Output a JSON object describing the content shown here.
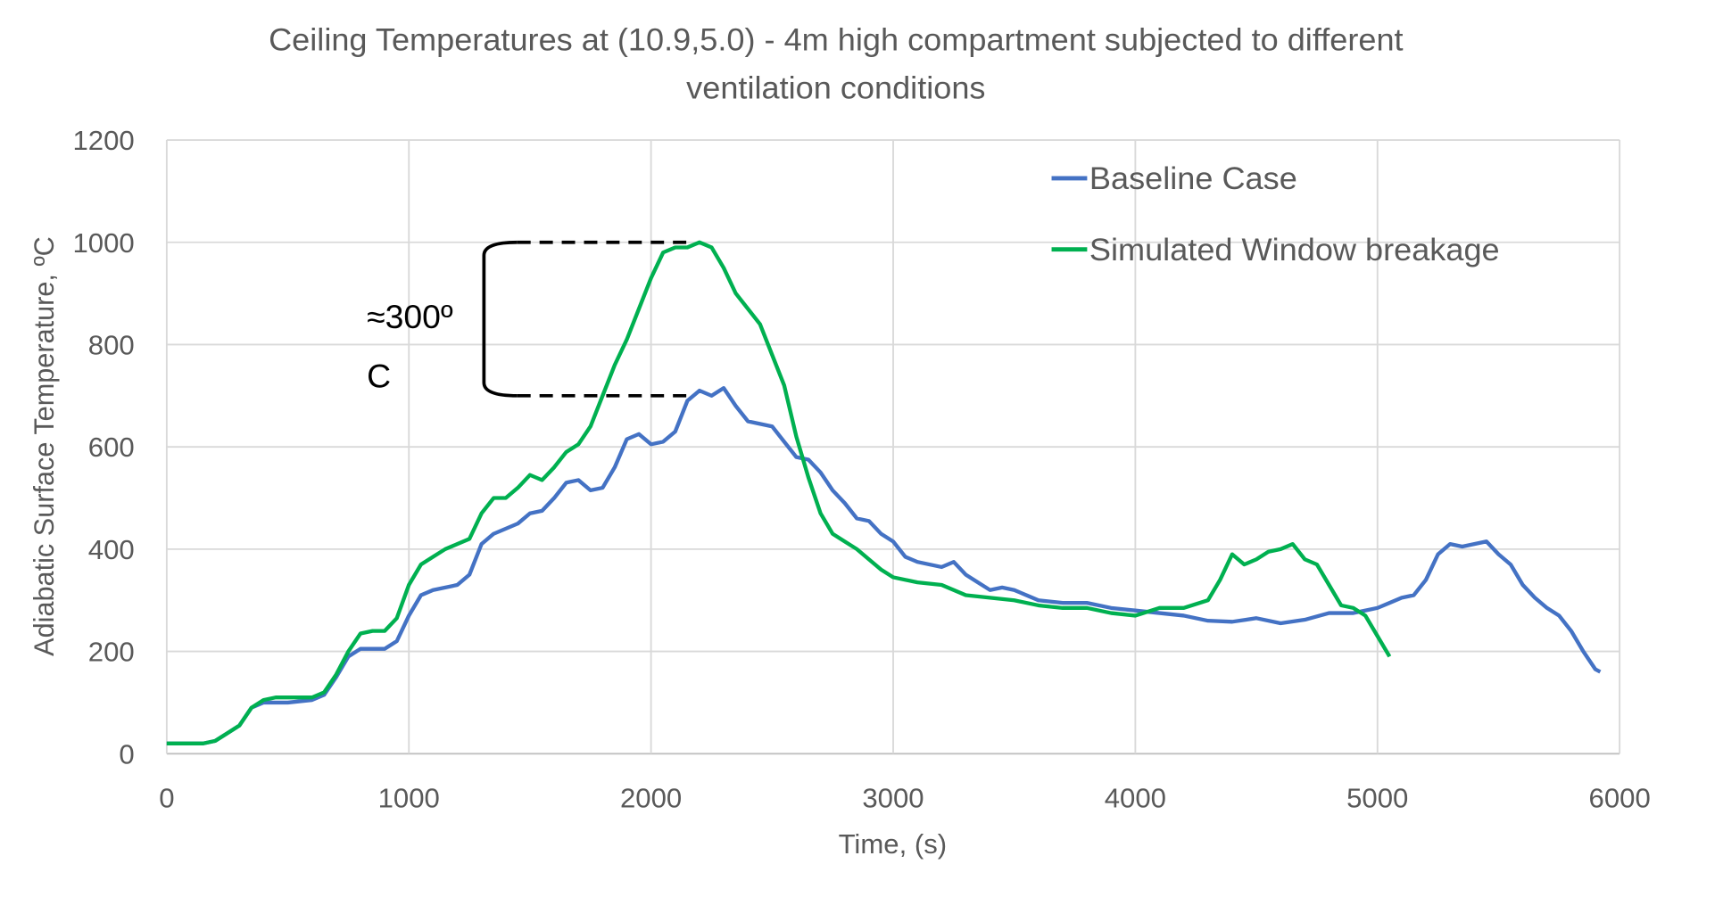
{
  "chart_data": {
    "type": "line",
    "title_line1": "Ceiling Temperatures at (10.9,5.0) - 4m high compartment subjected to different",
    "title_line2": "ventilation conditions",
    "xlabel": "Time, (s)",
    "ylabel": "Adiabatic Surface Temperature, ºC",
    "xlim": [
      0,
      6000
    ],
    "ylim": [
      0,
      1200
    ],
    "xticks": [
      0,
      1000,
      2000,
      3000,
      4000,
      5000,
      6000
    ],
    "yticks": [
      0,
      200,
      400,
      600,
      800,
      1000,
      1200
    ],
    "grid": true,
    "legend_position": "top-right",
    "series": [
      {
        "name": "Baseline Case",
        "color": "#4472c4",
        "points": [
          [
            0,
            20
          ],
          [
            150,
            20
          ],
          [
            200,
            25
          ],
          [
            300,
            55
          ],
          [
            350,
            90
          ],
          [
            400,
            100
          ],
          [
            500,
            100
          ],
          [
            600,
            105
          ],
          [
            650,
            115
          ],
          [
            700,
            150
          ],
          [
            750,
            190
          ],
          [
            800,
            205
          ],
          [
            900,
            205
          ],
          [
            950,
            220
          ],
          [
            1000,
            270
          ],
          [
            1050,
            310
          ],
          [
            1100,
            320
          ],
          [
            1200,
            330
          ],
          [
            1250,
            350
          ],
          [
            1300,
            410
          ],
          [
            1350,
            430
          ],
          [
            1400,
            440
          ],
          [
            1450,
            450
          ],
          [
            1500,
            470
          ],
          [
            1550,
            475
          ],
          [
            1600,
            500
          ],
          [
            1650,
            530
          ],
          [
            1700,
            535
          ],
          [
            1750,
            515
          ],
          [
            1800,
            520
          ],
          [
            1850,
            560
          ],
          [
            1900,
            615
          ],
          [
            1950,
            625
          ],
          [
            2000,
            605
          ],
          [
            2050,
            610
          ],
          [
            2100,
            630
          ],
          [
            2150,
            690
          ],
          [
            2200,
            710
          ],
          [
            2250,
            700
          ],
          [
            2300,
            715
          ],
          [
            2350,
            680
          ],
          [
            2400,
            650
          ],
          [
            2450,
            645
          ],
          [
            2500,
            640
          ],
          [
            2550,
            610
          ],
          [
            2600,
            580
          ],
          [
            2650,
            575
          ],
          [
            2700,
            550
          ],
          [
            2750,
            515
          ],
          [
            2800,
            490
          ],
          [
            2850,
            460
          ],
          [
            2900,
            455
          ],
          [
            2950,
            430
          ],
          [
            3000,
            415
          ],
          [
            3050,
            385
          ],
          [
            3100,
            375
          ],
          [
            3150,
            370
          ],
          [
            3200,
            365
          ],
          [
            3250,
            375
          ],
          [
            3300,
            350
          ],
          [
            3350,
            335
          ],
          [
            3400,
            320
          ],
          [
            3450,
            325
          ],
          [
            3500,
            320
          ],
          [
            3550,
            310
          ],
          [
            3600,
            300
          ],
          [
            3700,
            295
          ],
          [
            3800,
            295
          ],
          [
            3900,
            285
          ],
          [
            4000,
            280
          ],
          [
            4100,
            275
          ],
          [
            4200,
            270
          ],
          [
            4300,
            260
          ],
          [
            4400,
            258
          ],
          [
            4500,
            265
          ],
          [
            4600,
            255
          ],
          [
            4700,
            262
          ],
          [
            4800,
            275
          ],
          [
            4900,
            275
          ],
          [
            5000,
            285
          ],
          [
            5050,
            295
          ],
          [
            5100,
            305
          ],
          [
            5150,
            310
          ],
          [
            5200,
            340
          ],
          [
            5250,
            390
          ],
          [
            5300,
            410
          ],
          [
            5350,
            405
          ],
          [
            5400,
            410
          ],
          [
            5450,
            415
          ],
          [
            5500,
            390
          ],
          [
            5550,
            370
          ],
          [
            5600,
            330
          ],
          [
            5650,
            305
          ],
          [
            5700,
            285
          ],
          [
            5750,
            270
          ],
          [
            5800,
            240
          ],
          [
            5850,
            200
          ],
          [
            5900,
            165
          ],
          [
            5920,
            160
          ]
        ]
      },
      {
        "name": "Simulated Window breakage",
        "color": "#00b050",
        "points": [
          [
            0,
            20
          ],
          [
            150,
            20
          ],
          [
            200,
            25
          ],
          [
            300,
            55
          ],
          [
            350,
            90
          ],
          [
            400,
            105
          ],
          [
            450,
            110
          ],
          [
            600,
            110
          ],
          [
            650,
            120
          ],
          [
            700,
            155
          ],
          [
            750,
            200
          ],
          [
            800,
            235
          ],
          [
            850,
            240
          ],
          [
            900,
            240
          ],
          [
            950,
            265
          ],
          [
            1000,
            330
          ],
          [
            1050,
            370
          ],
          [
            1100,
            385
          ],
          [
            1150,
            400
          ],
          [
            1200,
            410
          ],
          [
            1250,
            420
          ],
          [
            1300,
            470
          ],
          [
            1350,
            500
          ],
          [
            1400,
            500
          ],
          [
            1450,
            520
          ],
          [
            1500,
            545
          ],
          [
            1550,
            535
          ],
          [
            1600,
            560
          ],
          [
            1650,
            590
          ],
          [
            1700,
            605
          ],
          [
            1750,
            640
          ],
          [
            1800,
            700
          ],
          [
            1850,
            760
          ],
          [
            1900,
            810
          ],
          [
            1950,
            870
          ],
          [
            2000,
            930
          ],
          [
            2050,
            980
          ],
          [
            2100,
            990
          ],
          [
            2150,
            990
          ],
          [
            2200,
            1000
          ],
          [
            2250,
            990
          ],
          [
            2300,
            950
          ],
          [
            2350,
            900
          ],
          [
            2400,
            870
          ],
          [
            2450,
            840
          ],
          [
            2500,
            780
          ],
          [
            2550,
            720
          ],
          [
            2600,
            620
          ],
          [
            2650,
            540
          ],
          [
            2700,
            470
          ],
          [
            2750,
            430
          ],
          [
            2800,
            415
          ],
          [
            2850,
            400
          ],
          [
            2900,
            380
          ],
          [
            2950,
            360
          ],
          [
            3000,
            345
          ],
          [
            3100,
            335
          ],
          [
            3200,
            330
          ],
          [
            3300,
            310
          ],
          [
            3400,
            305
          ],
          [
            3500,
            300
          ],
          [
            3600,
            290
          ],
          [
            3700,
            285
          ],
          [
            3800,
            285
          ],
          [
            3900,
            275
          ],
          [
            4000,
            270
          ],
          [
            4100,
            285
          ],
          [
            4200,
            285
          ],
          [
            4300,
            300
          ],
          [
            4350,
            340
          ],
          [
            4400,
            390
          ],
          [
            4450,
            370
          ],
          [
            4500,
            380
          ],
          [
            4550,
            395
          ],
          [
            4600,
            400
          ],
          [
            4650,
            410
          ],
          [
            4700,
            380
          ],
          [
            4750,
            370
          ],
          [
            4800,
            330
          ],
          [
            4850,
            290
          ],
          [
            4900,
            285
          ],
          [
            4950,
            270
          ],
          [
            5000,
            230
          ],
          [
            5050,
            190
          ]
        ]
      }
    ],
    "annotation": {
      "text_line1": "≈300º",
      "text_line2": "C",
      "from_value": 1000,
      "to_value": 700,
      "bracket_x": 1310,
      "dash_end_x": 2150
    }
  }
}
